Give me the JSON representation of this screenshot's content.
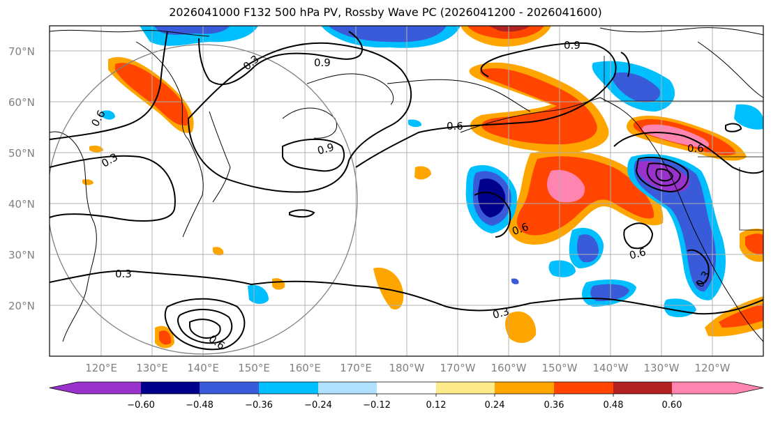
{
  "title": "2026041000 F132 500 hPa PV, Rossby Wave PC (2026041200 - 2026041600)",
  "map": {
    "lon_labels": [
      "120°E",
      "130°E",
      "140°E",
      "150°E",
      "160°E",
      "170°E",
      "180°W",
      "170°W",
      "160°W",
      "150°W",
      "140°W",
      "130°W",
      "120°W"
    ],
    "lat_labels": [
      "70°N",
      "60°N",
      "50°N",
      "40°N",
      "30°N",
      "20°N"
    ],
    "contour_labels": [
      "0.3",
      "0.9",
      "0.6",
      "0.3",
      "0.9",
      "0.6",
      "0.6",
      "0.9",
      "0.3",
      "0.6",
      "0.3",
      "0.6",
      "0.3",
      "0.6"
    ]
  },
  "colorbar": {
    "colors": [
      "#9932CC",
      "#00008B",
      "#3A5BD9",
      "#00BFFF",
      "#B0E2FF",
      "#FFFFFF",
      "#FFEB8A",
      "#FFA500",
      "#FF4500",
      "#B22222",
      "#FF85B0"
    ],
    "tick_labels": [
      "−0.60",
      "−0.48",
      "−0.36",
      "−0.24",
      "−0.12",
      "0.12",
      "0.24",
      "0.36",
      "0.48",
      "0.60"
    ]
  }
}
